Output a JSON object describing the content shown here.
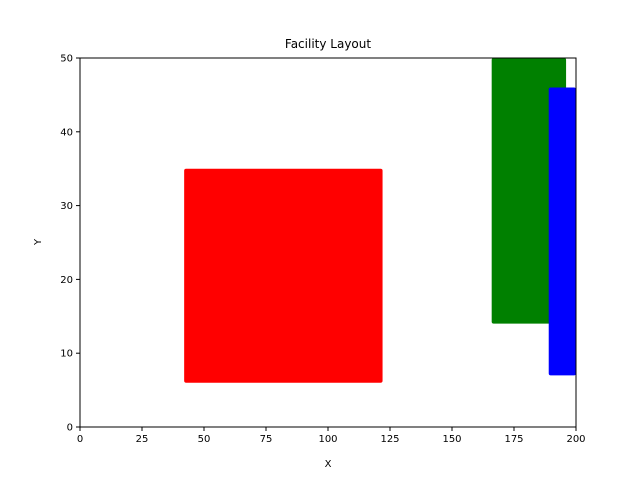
{
  "chart_data": {
    "type": "rectangles",
    "title": "Facility Layout",
    "xlabel": "X",
    "ylabel": "Y",
    "xlim": [
      0,
      200
    ],
    "ylim": [
      0,
      50
    ],
    "xticks": [
      "0",
      "25",
      "50",
      "75",
      "100",
      "125",
      "150",
      "175",
      "200"
    ],
    "yticks": [
      "0",
      "10",
      "20",
      "30",
      "40",
      "50"
    ],
    "grid": false,
    "rectangles": [
      {
        "x": 42,
        "y": 6,
        "width": 80,
        "height": 29,
        "color": "#ff0000"
      },
      {
        "x": 166,
        "y": 14,
        "width": 30,
        "height": 36,
        "color": "#008000"
      },
      {
        "x": 189,
        "y": 7,
        "width": 11,
        "height": 39,
        "color": "#0000ff"
      }
    ]
  }
}
